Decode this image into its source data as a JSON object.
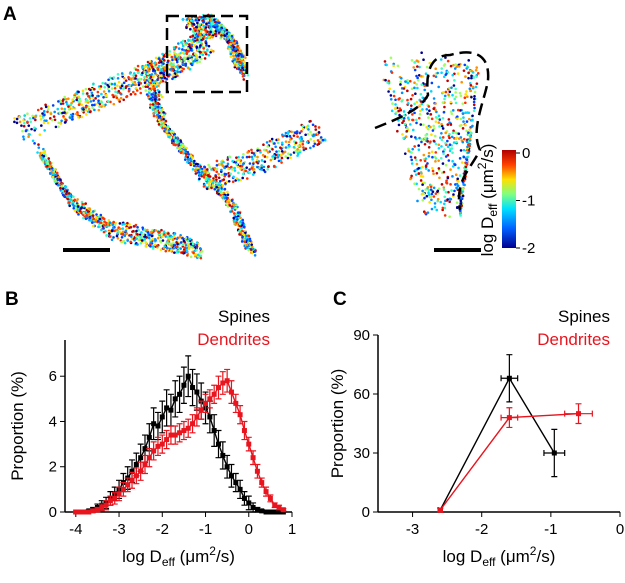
{
  "panel_a": {
    "letter": "A",
    "colorbar": {
      "lim": [
        -2,
        0
      ],
      "ticks": [
        0,
        -1,
        -2
      ],
      "label_parts": [
        "log D",
        "eff",
        " (μm",
        "2",
        "/s)"
      ]
    }
  },
  "chart_data": [
    {
      "type": "line",
      "letter": "B",
      "xlabel_parts": [
        "log D",
        "eff",
        " (μm",
        "2",
        "/s)"
      ],
      "ylabel": "Proportion (%)",
      "xlim": [
        -4.25,
        1
      ],
      "ylim": [
        0,
        7.6
      ],
      "xticks": [
        -4,
        -3,
        -2,
        -1,
        0,
        1
      ],
      "yticks": [
        0,
        2,
        4,
        6
      ],
      "x": [
        -4.0,
        -3.9,
        -3.8,
        -3.7,
        -3.6,
        -3.5,
        -3.4,
        -3.3,
        -3.2,
        -3.1,
        -3.0,
        -2.9,
        -2.8,
        -2.7,
        -2.6,
        -2.5,
        -2.4,
        -2.3,
        -2.2,
        -2.1,
        -2.0,
        -1.9,
        -1.8,
        -1.7,
        -1.6,
        -1.5,
        -1.4,
        -1.3,
        -1.2,
        -1.1,
        -1.0,
        -0.9,
        -0.8,
        -0.7,
        -0.6,
        -0.5,
        -0.4,
        -0.3,
        -0.2,
        -0.1,
        0.0,
        0.1,
        0.2,
        0.3,
        0.4,
        0.5,
        0.6,
        0.7,
        0.8
      ],
      "series": [
        {
          "name": "Spines",
          "color": "#000000",
          "values": [
            0,
            0,
            0,
            0.05,
            0.1,
            0.2,
            0.3,
            0.4,
            0.6,
            0.8,
            1.0,
            1.3,
            1.5,
            1.8,
            2.1,
            2.4,
            2.8,
            3.3,
            3.9,
            3.8,
            4.2,
            4.6,
            4.5,
            5.0,
            5.2,
            5.6,
            6.0,
            5.5,
            5.3,
            4.9,
            4.6,
            4.2,
            3.6,
            3.0,
            2.5,
            2.0,
            1.6,
            1.3,
            1.0,
            0.6,
            0.4,
            0.2,
            0.1,
            0.05,
            0,
            0,
            0,
            0,
            0
          ],
          "errors": [
            0,
            0,
            0,
            0.05,
            0.1,
            0.15,
            0.2,
            0.25,
            0.3,
            0.3,
            0.4,
            0.4,
            0.5,
            0.5,
            0.5,
            0.6,
            0.6,
            0.6,
            0.7,
            0.6,
            0.7,
            0.8,
            0.7,
            0.8,
            0.8,
            0.8,
            0.9,
            0.8,
            0.8,
            0.8,
            0.7,
            0.7,
            0.7,
            0.6,
            0.6,
            0.5,
            0.5,
            0.4,
            0.4,
            0.3,
            0.3,
            0.2,
            0.1,
            0.05,
            0,
            0,
            0,
            0,
            0
          ]
        },
        {
          "name": "Dendrites",
          "color": "#e8141e",
          "values": [
            0,
            0,
            0,
            0,
            0.05,
            0.1,
            0.2,
            0.3,
            0.5,
            0.6,
            0.8,
            1.0,
            1.2,
            1.4,
            1.6,
            1.8,
            2.1,
            2.4,
            2.7,
            2.9,
            3.0,
            3.2,
            3.4,
            3.4,
            3.5,
            3.6,
            3.7,
            3.9,
            4.2,
            4.5,
            4.8,
            5.0,
            5.2,
            5.5,
            5.7,
            5.8,
            5.3,
            4.8,
            4.3,
            3.6,
            3.0,
            2.4,
            1.8,
            1.3,
            0.9,
            0.6,
            0.3,
            0.2,
            0.1
          ],
          "errors": [
            0,
            0,
            0,
            0,
            0.05,
            0.1,
            0.15,
            0.2,
            0.2,
            0.25,
            0.3,
            0.3,
            0.3,
            0.35,
            0.35,
            0.4,
            0.4,
            0.4,
            0.4,
            0.4,
            0.4,
            0.4,
            0.4,
            0.4,
            0.4,
            0.4,
            0.4,
            0.4,
            0.4,
            0.4,
            0.4,
            0.4,
            0.4,
            0.5,
            0.5,
            0.5,
            0.5,
            0.4,
            0.4,
            0.4,
            0.3,
            0.3,
            0.3,
            0.2,
            0.2,
            0.15,
            0.1,
            0.1,
            0.05
          ]
        }
      ]
    },
    {
      "type": "errorline",
      "letter": "C",
      "xlabel_parts": [
        "log D",
        "eff",
        " (μm",
        "2",
        "/s)"
      ],
      "ylabel": "Proportion (%)",
      "xlim": [
        -3.5,
        0
      ],
      "ylim": [
        0,
        90
      ],
      "xticks": [
        -3,
        -2,
        -1,
        0
      ],
      "yticks": [
        0,
        30,
        60,
        90
      ],
      "series": [
        {
          "name": "Spines",
          "color": "#000000",
          "x": [
            -2.6,
            -1.6,
            -0.95
          ],
          "xerr": [
            0.03,
            0.12,
            0.15
          ],
          "values": [
            1,
            68,
            30
          ],
          "errors": [
            1,
            12,
            12
          ]
        },
        {
          "name": "Dendrites",
          "color": "#e8141e",
          "x": [
            -2.6,
            -1.6,
            -0.6
          ],
          "xerr": [
            0.03,
            0.12,
            0.2
          ],
          "values": [
            1,
            48,
            50
          ],
          "errors": [
            1,
            5,
            5
          ]
        }
      ]
    }
  ]
}
